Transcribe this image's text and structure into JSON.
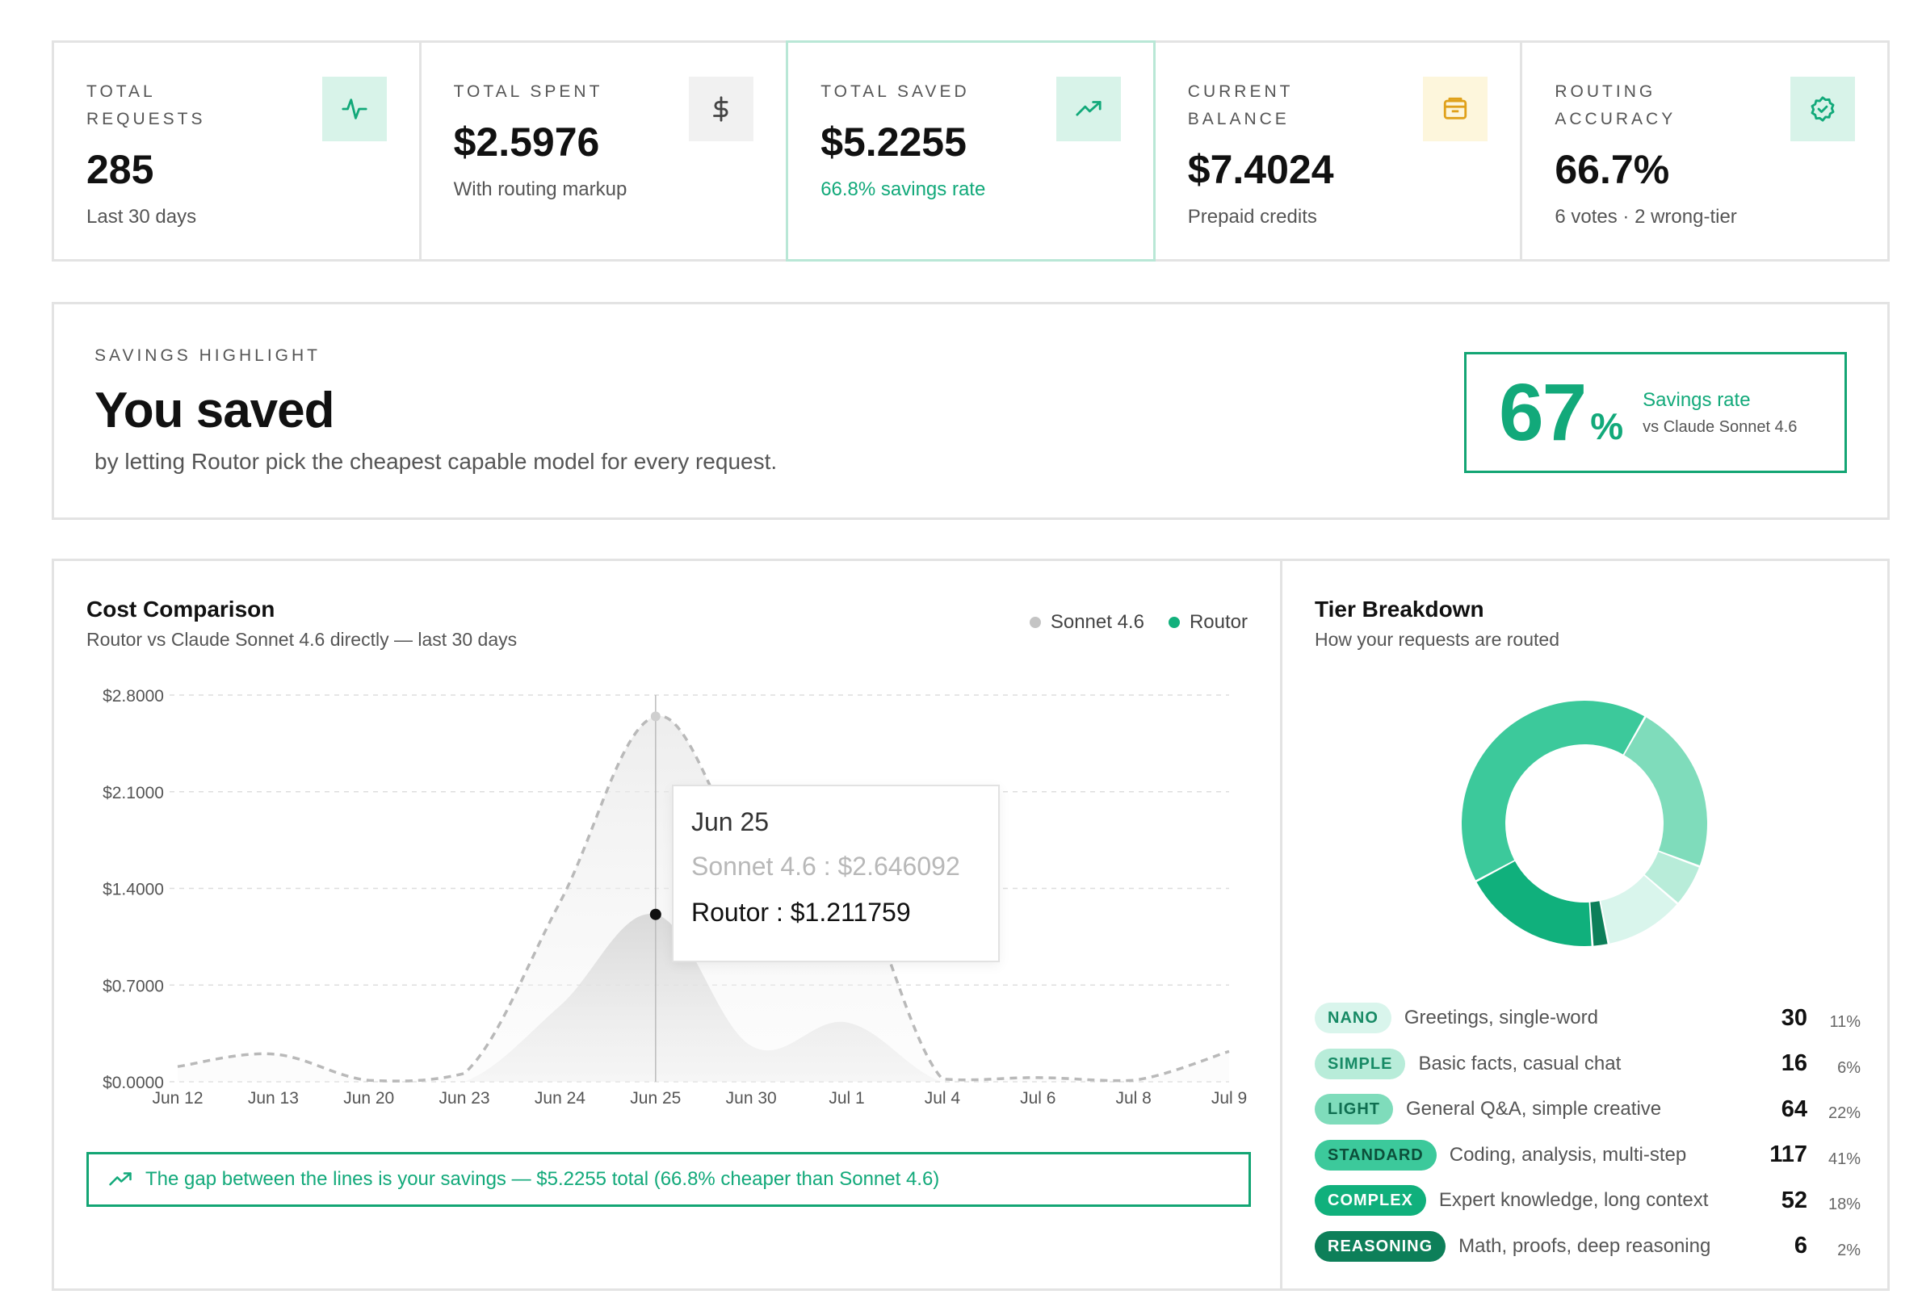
{
  "stats": [
    {
      "label": "Total Requests",
      "value": "285",
      "sub": "Last 30 days",
      "icon": "activity-icon"
    },
    {
      "label": "Total Spent",
      "value": "$2.5976",
      "sub": "With routing markup",
      "icon": "dollar-icon"
    },
    {
      "label": "Total Saved",
      "value": "$5.2255",
      "sub": "66.8% savings rate",
      "icon": "trending-up-icon"
    },
    {
      "label": "Current Balance",
      "value": "$7.4024",
      "sub": "Prepaid credits",
      "icon": "wallet-icon"
    },
    {
      "label": "Routing Accuracy",
      "value": "66.7%",
      "sub": "6 votes · 2 wrong-tier",
      "icon": "badge-check-icon"
    }
  ],
  "highlight": {
    "label": "SAVINGS HIGHLIGHT",
    "title": "You saved",
    "subtitle": "by letting Routor pick the cheapest capable model for every request.",
    "rate_value": "67",
    "rate_unit": "%",
    "rate_label": "Savings rate",
    "rate_compare": "vs Claude Sonnet 4.6"
  },
  "cost_panel": {
    "title": "Cost Comparison",
    "subtitle": "Routor vs Claude Sonnet 4.6 directly — last 30 days",
    "legend": [
      {
        "name": "Sonnet 4.6",
        "color": "#c4c4c4"
      },
      {
        "name": "Routor",
        "color": "#12b07c"
      }
    ],
    "tooltip": {
      "date": "Jun 25",
      "row1": "Sonnet 4.6 : $2.646092",
      "row2": "Routor : $1.211759"
    },
    "note": "The gap between the lines is your savings — $5.2255 total (66.8% cheaper than Sonnet 4.6)"
  },
  "chart_data": {
    "type": "area",
    "title": "Cost Comparison",
    "x": [
      "Jun 12",
      "Jun 13",
      "Jun 20",
      "Jun 23",
      "Jun 24",
      "Jun 25",
      "Jun 30",
      "Jul 1",
      "Jul 4",
      "Jul 6",
      "Jul 8",
      "Jul 9"
    ],
    "y_ticks": [
      "$0.0000",
      "$0.7000",
      "$1.4000",
      "$2.1000",
      "$2.8000"
    ],
    "ylim": [
      0,
      2.8
    ],
    "grid": true,
    "legend_position": "top-right",
    "series": [
      {
        "name": "Sonnet 4.6",
        "color": "#c4c4c4",
        "values": [
          0.11,
          0.2,
          0.01,
          0.06,
          1.3,
          2.646092,
          1.65,
          1.55,
          0.02,
          0.03,
          0.01,
          0.22
        ]
      },
      {
        "name": "Routor",
        "color": "#12b07c",
        "values": [
          0.0,
          0.0,
          0.0,
          0.0,
          0.55,
          1.211759,
          0.26,
          0.43,
          0.0,
          0.0,
          0.0,
          0.0
        ]
      }
    ],
    "highlight_x": "Jun 25"
  },
  "tier_panel": {
    "title": "Tier Breakdown",
    "subtitle": "How your requests are routed",
    "tiers": [
      {
        "name": "NANO",
        "desc": "Greetings, single-word",
        "count": "30",
        "pct": "11%",
        "bg": "#d9f5ec",
        "fg": "#178a65",
        "color": "#d9f5ec"
      },
      {
        "name": "SIMPLE",
        "desc": "Basic facts, casual chat",
        "count": "16",
        "pct": "6%",
        "bg": "#b8ecd9",
        "fg": "#178a65",
        "color": "#b8ecd9"
      },
      {
        "name": "LIGHT",
        "desc": "General Q&A, simple creative",
        "count": "64",
        "pct": "22%",
        "bg": "#7fdcbb",
        "fg": "#0f6e50",
        "color": "#7fdcbb"
      },
      {
        "name": "STANDARD",
        "desc": "Coding, analysis, multi-step",
        "count": "117",
        "pct": "41%",
        "bg": "#3cc99b",
        "fg": "#0c4f3a",
        "color": "#3cc99b"
      },
      {
        "name": "COMPLEX",
        "desc": "Expert knowledge, long context",
        "count": "52",
        "pct": "18%",
        "bg": "#10b07c",
        "fg": "#ffffff",
        "color": "#10b07c"
      },
      {
        "name": "REASONING",
        "desc": "Math, proofs, deep reasoning",
        "count": "6",
        "pct": "2%",
        "bg": "#0d7f59",
        "fg": "#ffffff",
        "color": "#0d7f59"
      }
    ]
  }
}
